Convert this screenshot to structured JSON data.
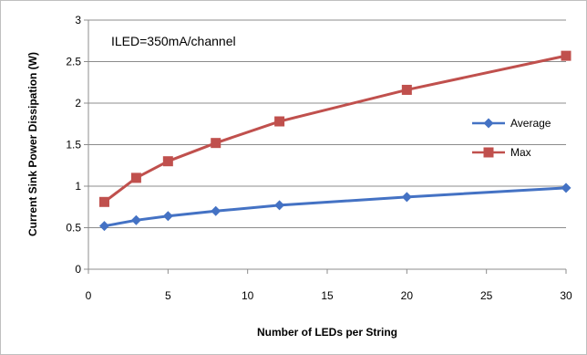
{
  "chart_data": {
    "type": "line",
    "title": "",
    "annotation": "ILED=350mA/channel",
    "xlabel": "Number of LEDs per String",
    "ylabel": "Current Sink Power Dissipation  (W)",
    "xlim": [
      0,
      30
    ],
    "ylim": [
      0,
      3
    ],
    "xticks": [
      "0",
      "5",
      "10",
      "15",
      "20",
      "25",
      "30"
    ],
    "yticks": [
      "0",
      "0.5",
      "1",
      "1.5",
      "2",
      "2.5",
      "3"
    ],
    "grid": "horizontal",
    "legend_position": "right",
    "x": [
      1,
      3,
      5,
      8,
      12,
      20,
      30
    ],
    "series": [
      {
        "name": "Average",
        "values": [
          0.52,
          0.59,
          0.64,
          0.7,
          0.77,
          0.87,
          0.98
        ],
        "color": "#4472c4",
        "marker": "diamond"
      },
      {
        "name": "Max",
        "values": [
          0.81,
          1.1,
          1.3,
          1.52,
          1.78,
          2.16,
          2.57
        ],
        "color": "#c0504d",
        "marker": "square"
      }
    ]
  }
}
